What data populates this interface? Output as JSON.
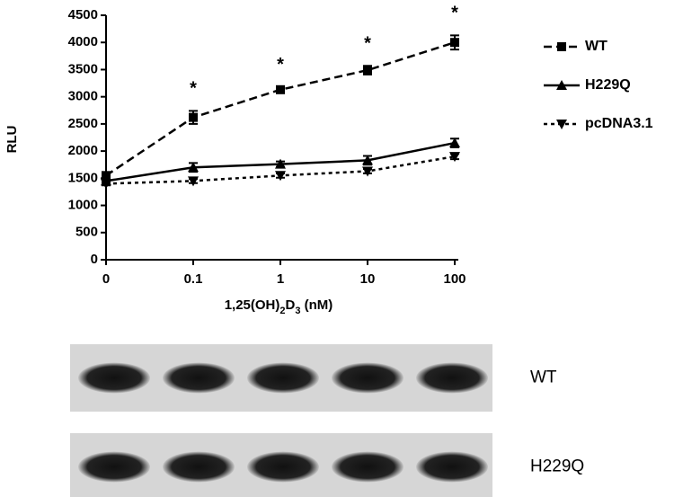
{
  "chart_data": {
    "type": "line",
    "ylabel": "RLU",
    "xlabel_parts": [
      "1,25(OH)",
      "2",
      "D",
      "3",
      " (nM)"
    ],
    "categories": [
      "0",
      "0.1",
      "1",
      "10",
      "100"
    ],
    "ylim": [
      0,
      4500
    ],
    "yticks": [
      0,
      500,
      1000,
      1500,
      2000,
      2500,
      3000,
      3500,
      4000,
      4500
    ],
    "legend": "right",
    "series": [
      {
        "name": "WT",
        "color": "#000000",
        "marker": "square",
        "dash": "dashed",
        "values": [
          1550,
          2620,
          3130,
          3490,
          4000
        ],
        "errors": [
          50,
          120,
          50,
          80,
          130
        ]
      },
      {
        "name": "H229Q",
        "color": "#000000",
        "marker": "triangle-up",
        "dash": "solid",
        "values": [
          1450,
          1700,
          1760,
          1830,
          2150
        ],
        "errors": [
          50,
          80,
          50,
          80,
          80
        ]
      },
      {
        "name": "pcDNA3.1",
        "color": "#000000",
        "marker": "triangle-down",
        "dash": "dotted",
        "values": [
          1400,
          1450,
          1550,
          1630,
          1900
        ],
        "errors": [
          30,
          40,
          40,
          40,
          50
        ]
      }
    ],
    "annotations": [
      {
        "text": "*",
        "x": "0.1"
      },
      {
        "text": "*",
        "x": "1"
      },
      {
        "text": "*",
        "x": "10"
      },
      {
        "text": "*",
        "x": "100"
      }
    ]
  },
  "blot": {
    "rows": [
      {
        "label": "WT"
      },
      {
        "label": "H229Q"
      }
    ]
  }
}
